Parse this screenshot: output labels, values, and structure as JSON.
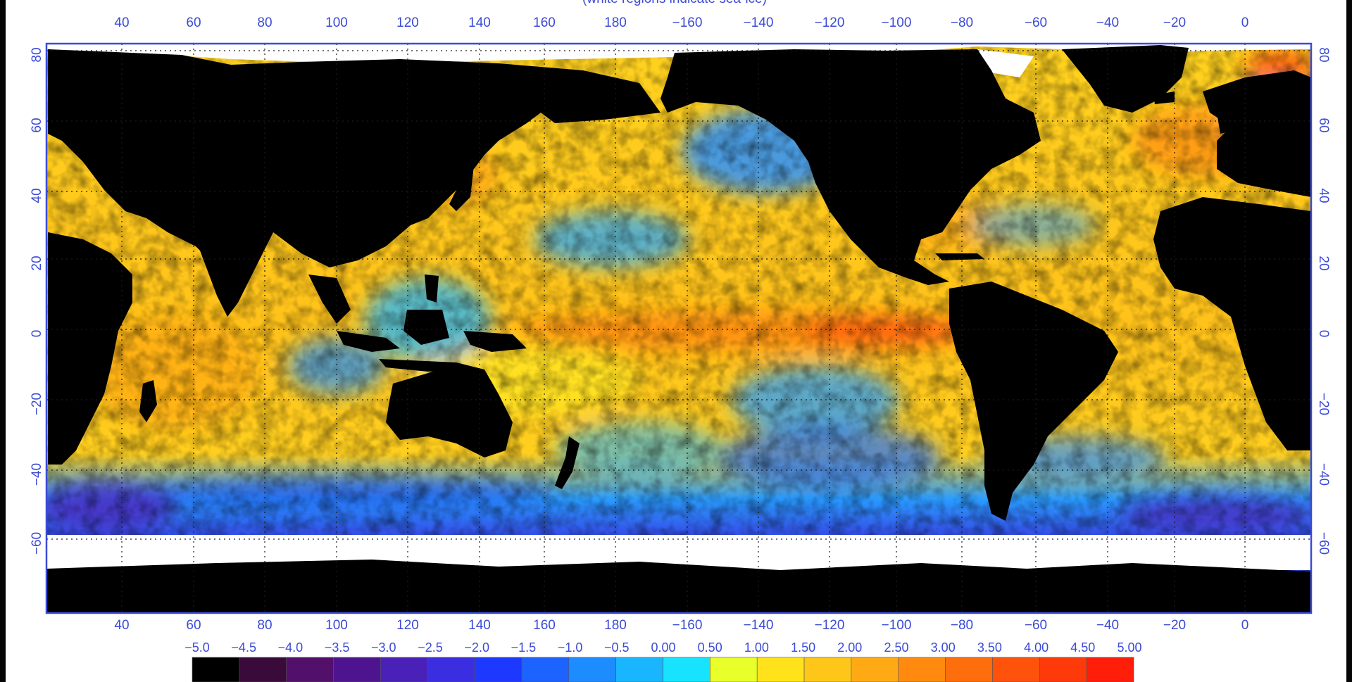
{
  "map": {
    "subtitle": "(white regions indicate sea-ice)",
    "lon_ticks_top": [
      "40",
      "60",
      "80",
      "100",
      "120",
      "140",
      "160",
      "180",
      "−160",
      "−140",
      "−120",
      "−100",
      "−80",
      "−60",
      "−40",
      "−20",
      "0"
    ],
    "lon_ticks_bottom": [
      "40",
      "60",
      "80",
      "100",
      "120",
      "140",
      "160",
      "180",
      "−160",
      "−140",
      "−120",
      "−100",
      "−80",
      "−60",
      "−40",
      "−20",
      "0"
    ],
    "lat_ticks_left": [
      "80",
      "60",
      "40",
      "20",
      "0",
      "−20",
      "−40",
      "−60"
    ],
    "lat_ticks_right": [
      "80",
      "60",
      "40",
      "20",
      "0",
      "−20",
      "−40",
      "−60"
    ],
    "colors": {
      "land": "#000000",
      "sea_ice": "#ffffff",
      "frame": "#3b4bd6",
      "grid": "#1a1a1a"
    }
  },
  "colorbar": {
    "labels": [
      "−5.0",
      "−4.5",
      "−4.0",
      "−3.5",
      "−3.0",
      "−2.5",
      "−2.0",
      "−1.5",
      "−1.0",
      "−0.5",
      "0.00",
      "0.50",
      "1.00",
      "1.50",
      "2.00",
      "2.50",
      "3.00",
      "3.50",
      "4.00",
      "4.50",
      "5.00"
    ],
    "colors": [
      "#000000",
      "#3a0b3a",
      "#52106b",
      "#4e1490",
      "#4a21b8",
      "#3a2ee0",
      "#1e39ff",
      "#1c63ff",
      "#1c8cff",
      "#19b6ff",
      "#17e3ff",
      "#e8ff2a",
      "#ffe21a",
      "#ffc61a",
      "#ffaa14",
      "#ff8a0f",
      "#ff6e0c",
      "#ff520b",
      "#ff3a0a",
      "#ff1e0a"
    ]
  }
}
